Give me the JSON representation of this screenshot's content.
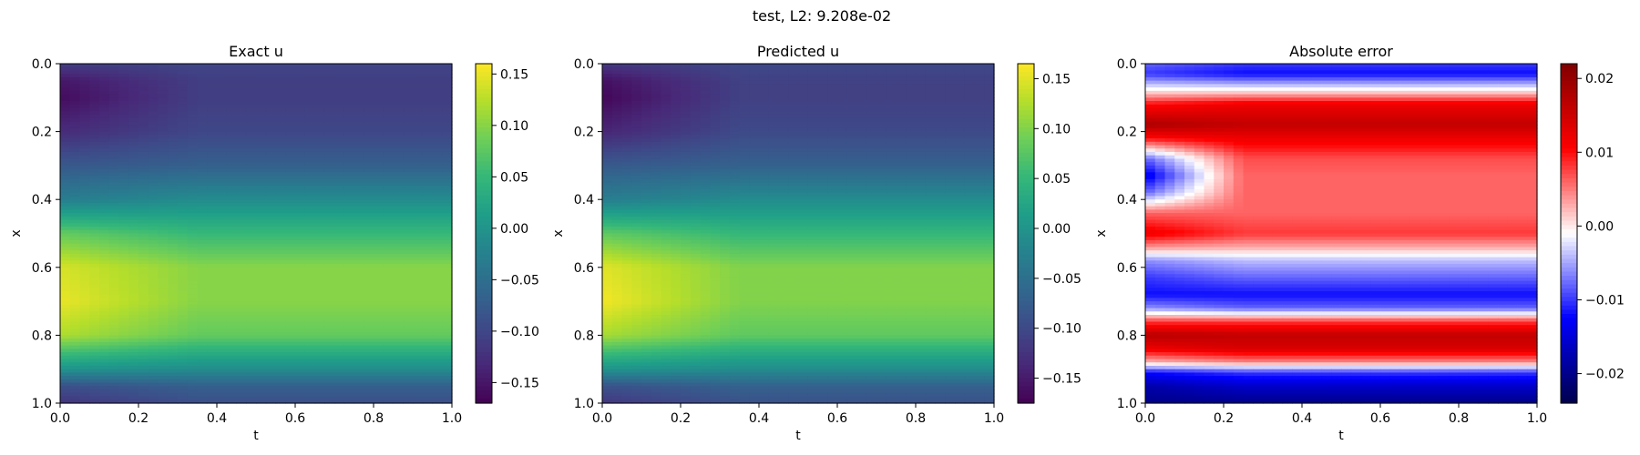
{
  "suptitle": "test, L2: 9.208e-02",
  "chart_data": [
    {
      "type": "heatmap",
      "title": "Exact u",
      "xlabel": "t",
      "ylabel": "x",
      "xlim": [
        0.0,
        1.0
      ],
      "ylim": [
        1.0,
        0.0
      ],
      "xticks": [
        "0.0",
        "0.2",
        "0.4",
        "0.6",
        "0.8",
        "1.0"
      ],
      "yticks": [
        "0.0",
        "0.2",
        "0.4",
        "0.6",
        "0.8",
        "1.0"
      ],
      "colormap": "viridis",
      "colorbar": {
        "min": -0.17,
        "max": 0.16,
        "ticks": [
          "0.15",
          "0.10",
          "0.05",
          "0.00",
          "−0.05",
          "−0.10",
          "−0.15"
        ]
      },
      "profile": {
        "x": [
          0.0,
          0.05,
          0.1,
          0.2,
          0.3,
          0.4,
          0.5,
          0.6,
          0.7,
          0.8,
          0.9,
          0.95,
          1.0
        ],
        "u_t0": [
          -0.11,
          -0.15,
          -0.16,
          -0.13,
          -0.08,
          -0.03,
          0.08,
          0.14,
          0.15,
          0.12,
          0.0,
          -0.09,
          -0.12
        ],
        "u_t1": [
          -0.1,
          -0.11,
          -0.11,
          -0.1,
          -0.07,
          -0.01,
          0.05,
          0.1,
          0.1,
          0.08,
          -0.01,
          -0.07,
          -0.09
        ]
      }
    },
    {
      "type": "heatmap",
      "title": "Predicted u",
      "xlabel": "t",
      "ylabel": "x",
      "xlim": [
        0.0,
        1.0
      ],
      "ylim": [
        1.0,
        0.0
      ],
      "xticks": [
        "0.0",
        "0.2",
        "0.4",
        "0.6",
        "0.8",
        "1.0"
      ],
      "yticks": [
        "0.0",
        "0.2",
        "0.4",
        "0.6",
        "0.8",
        "1.0"
      ],
      "colormap": "viridis",
      "colorbar": {
        "min": -0.175,
        "max": 0.165,
        "ticks": [
          "0.15",
          "0.10",
          "0.05",
          "0.00",
          "−0.05",
          "−0.10",
          "−0.15"
        ]
      },
      "profile": {
        "x": [
          0.0,
          0.05,
          0.1,
          0.2,
          0.3,
          0.4,
          0.5,
          0.6,
          0.7,
          0.8,
          0.9,
          0.95,
          1.0
        ],
        "u_t0": [
          -0.12,
          -0.16,
          -0.17,
          -0.14,
          -0.08,
          -0.03,
          0.08,
          0.15,
          0.16,
          0.12,
          0.0,
          -0.09,
          -0.12
        ],
        "u_t1": [
          -0.1,
          -0.11,
          -0.11,
          -0.1,
          -0.07,
          -0.01,
          0.05,
          0.1,
          0.1,
          0.08,
          -0.01,
          -0.07,
          -0.09
        ]
      }
    },
    {
      "type": "heatmap",
      "title": "Absolute error",
      "xlabel": "t",
      "ylabel": "x",
      "xlim": [
        0.0,
        1.0
      ],
      "ylim": [
        1.0,
        0.0
      ],
      "xticks": [
        "0.0",
        "0.2",
        "0.4",
        "0.6",
        "0.8",
        "1.0"
      ],
      "yticks": [
        "0.0",
        "0.2",
        "0.4",
        "0.6",
        "0.8",
        "1.0"
      ],
      "colormap": "seismic",
      "colorbar": {
        "min": -0.024,
        "max": 0.022,
        "ticks": [
          "0.02",
          "0.01",
          "0.00",
          "−0.01",
          "−0.02"
        ]
      },
      "profile": {
        "x": [
          0.0,
          0.03,
          0.08,
          0.12,
          0.18,
          0.22,
          0.28,
          0.33,
          0.38,
          0.44,
          0.5,
          0.54,
          0.58,
          0.63,
          0.68,
          0.72,
          0.76,
          0.8,
          0.84,
          0.88,
          0.91,
          0.95,
          1.0
        ],
        "e_t0": [
          -0.008,
          -0.01,
          0.0,
          0.01,
          0.018,
          0.01,
          -0.008,
          -0.014,
          -0.008,
          0.006,
          0.012,
          0.004,
          -0.006,
          -0.01,
          -0.012,
          -0.006,
          0.008,
          0.017,
          0.012,
          0.002,
          -0.012,
          -0.018,
          -0.02
        ],
        "e_t1": [
          -0.01,
          -0.012,
          0.0,
          0.012,
          0.016,
          0.012,
          0.007,
          0.006,
          0.006,
          0.006,
          0.008,
          0.003,
          -0.004,
          -0.008,
          -0.012,
          -0.008,
          0.008,
          0.016,
          0.014,
          0.004,
          -0.01,
          -0.016,
          -0.02
        ]
      }
    }
  ]
}
